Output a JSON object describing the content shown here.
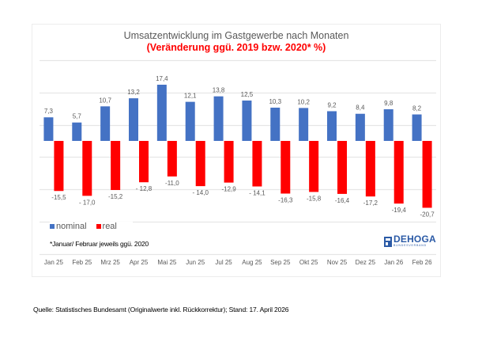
{
  "chart_data": {
    "type": "bar",
    "title": "Umsatzentwicklung im Gastgewerbe nach Monaten",
    "subtitle": "(Veränderung ggü. 2019 bzw. 2020* %)",
    "xlabel": "",
    "ylabel": "",
    "ylim": [
      -35,
      25
    ],
    "y_gridlines": [
      25,
      15,
      5,
      -5,
      -15,
      -25,
      -35
    ],
    "grid": true,
    "legend_position": "bottom-left",
    "categories": [
      "Jan 25",
      "Feb 25",
      "Mrz 25",
      "Apr 25",
      "Mai 25",
      "Jun 25",
      "Jul 25",
      "Aug 25",
      "Sep 25",
      "Okt 25",
      "Nov 25",
      "Dez 25",
      "Jan 26",
      "Feb 26"
    ],
    "series": [
      {
        "name": "nominal",
        "color": "#4472c4",
        "values": [
          7.3,
          5.7,
          10.7,
          13.2,
          17.4,
          12.1,
          13.8,
          12.5,
          10.3,
          10.2,
          9.2,
          8.4,
          9.8,
          8.2
        ],
        "labels": [
          "7,3",
          "5,7",
          "10,7",
          "13,2",
          "17,4",
          "12,1",
          "13,8",
          "12,5",
          "10,3",
          "10,2",
          "9,2",
          "8,4",
          "9,8",
          "8,2"
        ]
      },
      {
        "name": "real",
        "color": "#ff0000",
        "values": [
          -15.5,
          -17.0,
          -15.2,
          -12.8,
          -11.0,
          -14.0,
          -12.9,
          -14.1,
          -16.3,
          -15.8,
          -16.4,
          -17.2,
          -19.4,
          -20.7
        ],
        "labels": [
          "-15,5",
          "- 17,0",
          "-15,2",
          "- 12,8",
          "-11,0",
          "- 14,0",
          "-12,9",
          "- 14,1",
          "-16,3",
          "-15,8",
          "-16,4",
          "-17,2",
          "-19,4",
          "-20,7"
        ]
      }
    ],
    "footnote": "*Januar/ Februar jeweils ggü. 2020"
  },
  "legend": {
    "nominal_label": "nominal",
    "real_label": "real"
  },
  "logo": {
    "name": "DEHOGA",
    "subtitle": "BUNDESVERBAND"
  },
  "source": "Quelle: Statistisches Bundesamt (Originalwerte inkl. Rückkorrektur); Stand: 17. April 2026"
}
